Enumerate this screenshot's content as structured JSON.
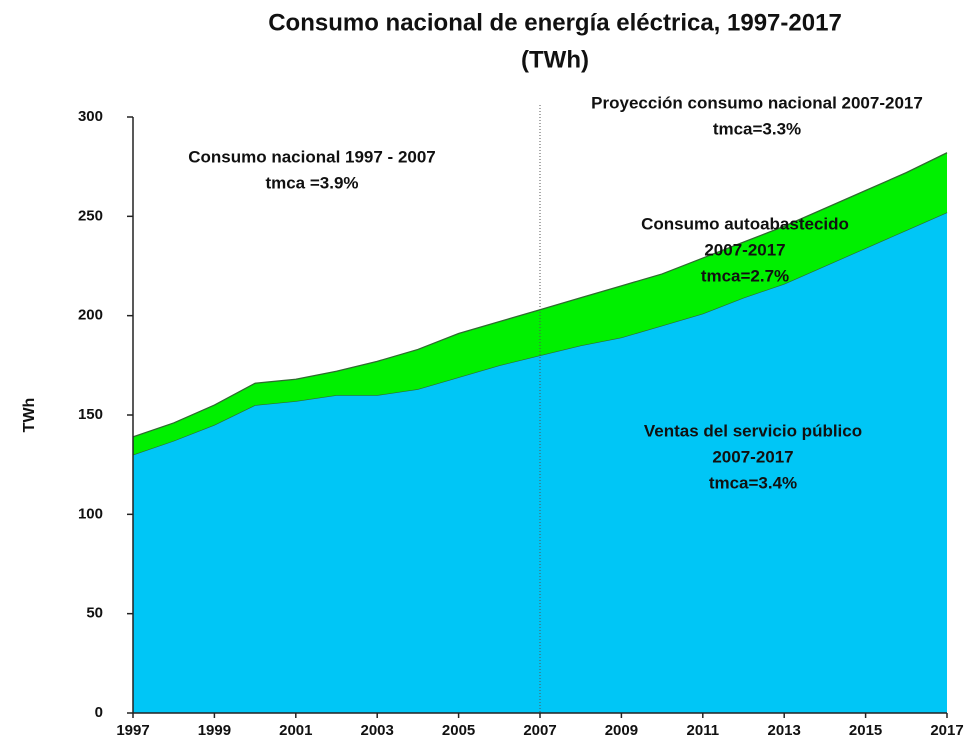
{
  "chart_data": {
    "type": "stacked_area",
    "title": "Consumo nacional de energía eléctrica, 1997-2017",
    "subtitle": "(TWh)",
    "y_label": "TWh",
    "x": [
      1997,
      1998,
      1999,
      2000,
      2001,
      2002,
      2003,
      2004,
      2005,
      2006,
      2007,
      2008,
      2009,
      2010,
      2011,
      2012,
      2013,
      2014,
      2015,
      2016,
      2017
    ],
    "series": [
      {
        "color": "#00c6f6",
        "values": [
          130,
          137,
          145,
          155,
          157,
          160,
          160,
          163,
          169,
          175,
          180,
          185,
          189,
          195,
          201,
          209,
          216,
          225,
          234,
          243,
          252
        ]
      },
      {
        "color": "#00f000",
        "values": [
          9,
          9,
          10,
          11,
          11,
          12,
          17,
          20,
          22,
          22,
          23,
          24,
          26,
          26,
          28,
          28,
          29,
          29,
          29,
          29,
          30
        ]
      }
    ],
    "xlim": [
      1997,
      2017
    ],
    "xticks": [
      1997,
      1999,
      2001,
      2003,
      2005,
      2007,
      2009,
      2011,
      2013,
      2015,
      2017
    ],
    "ylim": [
      0,
      300
    ],
    "yticks": [
      0,
      50,
      100,
      150,
      200,
      250,
      300
    ],
    "vline": 2007,
    "annotations": [
      {
        "lines": [
          "Consumo nacional 1997 - 2007",
          "tmca =3.9%"
        ]
      },
      {
        "lines": [
          "Proyección consumo nacional 2007-2017",
          "tmca=3.3%"
        ]
      },
      {
        "lines": [
          "Consumo autoabastecido",
          "2007-2017",
          "tmca=2.7%"
        ]
      },
      {
        "lines": [
          "Ventas del servicio público",
          "2007-2017",
          "tmca=3.4%"
        ]
      }
    ]
  }
}
